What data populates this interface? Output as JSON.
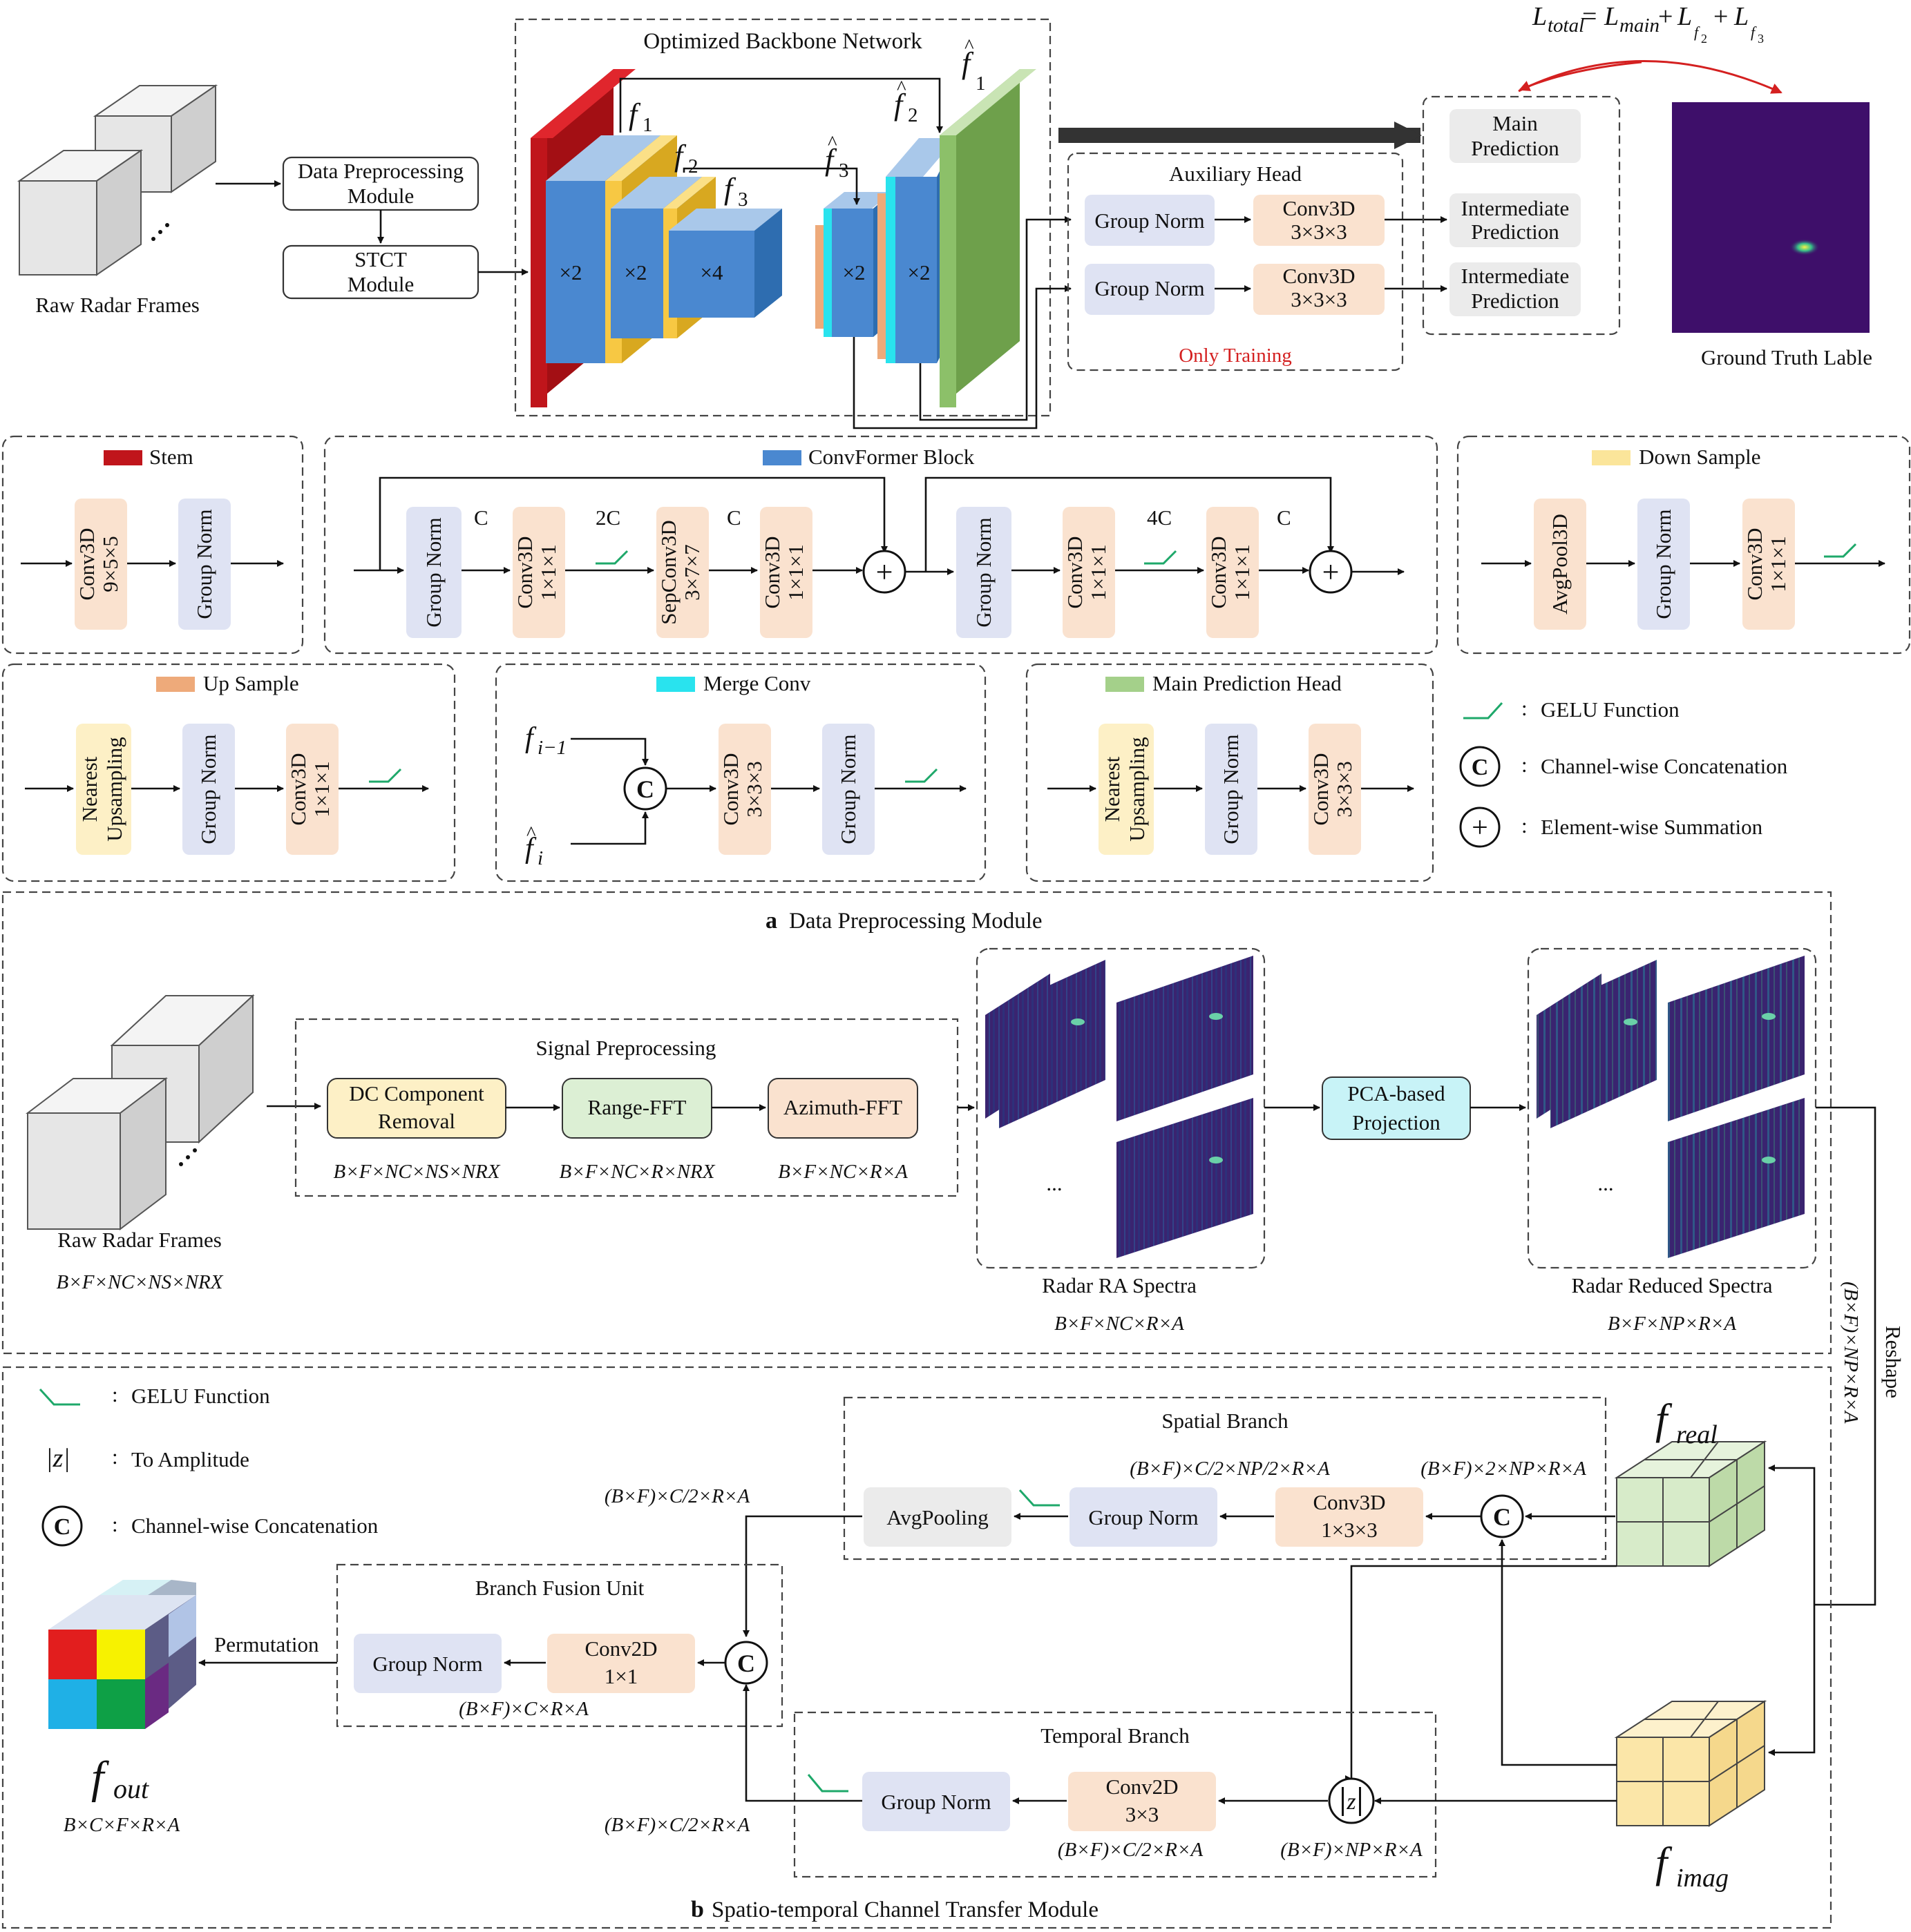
{
  "colors": {
    "stem": "#c0151b",
    "convformer": "#4a88d0",
    "down": "#f7c843",
    "up": "#eeaa7a",
    "merge": "#29e3ee",
    "main_head": "#8cc069",
    "norm_box": "#dfe3f3",
    "conv_box": "#fae2cf",
    "nearest_box": "#fdf0c6",
    "fft_green": "#dcefd4",
    "pca_box": "#c8f3f7",
    "gelu": "#1ea86a",
    "spectra": "#3a2470"
  },
  "top": {
    "raw_frames": "Raw Radar Frames",
    "data_prep": [
      "Data Preprocessing",
      "Module"
    ],
    "stct": [
      "STCT",
      "Module"
    ],
    "backbone_title": "Optimized Backbone Network",
    "f1": "f",
    "f1_sub": "1",
    "f2": "f",
    "f2_sub": "2",
    "f3": "f",
    "f3_sub": "3",
    "fh1": "f",
    "fh1_sub": "1",
    "fh2": "f",
    "fh2_sub": "2",
    "fh3": "f",
    "fh3_sub": "3",
    "hat": "^",
    "x2": "×2",
    "x4": "×4",
    "aux_title": "Auxiliary Head",
    "group_norm": "Group Norm",
    "conv3d": "Conv3D",
    "k333": "3×3×3",
    "only_training": "Only Training",
    "main_pred": [
      "Main",
      "Prediction"
    ],
    "inter_pred": [
      "Intermediate",
      "Prediction"
    ],
    "gt_label": "Ground Truth Lable",
    "loss": {
      "L": "L",
      "total": "total",
      "eq": "=",
      "main": "main",
      "plus": "+",
      "f2": "f",
      "f2s": "2",
      "f3": "f",
      "f3s": "3"
    }
  },
  "legend": {
    "stem": "Stem",
    "convformer": "ConvFormer Block",
    "down": "Down Sample",
    "up": "Up Sample",
    "merge": "Merge Conv",
    "main_head": "Main Prediction Head",
    "gelu": "GELU Function",
    "concat": "Channel-wise Concatenation",
    "sum": "Element-wise Summation",
    "colon": ":",
    "c": "C",
    "plus": "+"
  },
  "blocks": {
    "conv3d": "Conv3D",
    "k955": "9×5×5",
    "k111": "1×1×1",
    "k377": "3×7×7",
    "k333": "3×3×3",
    "group_norm": "Group Norm",
    "sepconv3d": "SepConv3D",
    "avgpool3d": "AvgPool3D",
    "nearest": "Nearest",
    "upsampling": "Upsampling",
    "ch_C": "C",
    "ch_2C": "2C",
    "ch_4C": "4C",
    "fi1": "f",
    "fi1_sub": "i−1",
    "fi": "f",
    "fi_sub": "i"
  },
  "panel_a": {
    "tag": "a",
    "title": "Data Preprocessing Module",
    "signal_title": "Signal Preprocessing",
    "dc": [
      "DC Component",
      "Removal"
    ],
    "range_fft": "Range-FFT",
    "azimuth_fft": "Azimuth-FFT",
    "dim_dc": "B×F×NC×NS×NRX",
    "dim_range": "B×F×NC×R×NRX",
    "dim_azimuth": "B×F×NC×R×A",
    "raw_frames": "Raw Radar Frames",
    "dim_raw": "B×F×NC×NS×NRX",
    "ra_spectra": "Radar RA Spectra",
    "dim_ra": "B×F×NC×R×A",
    "pca": [
      "PCA-based",
      "Projection"
    ],
    "reduced": "Radar Reduced Spectra",
    "dim_reduced": "B×F×NP×R×A",
    "ellipsis": "...",
    "reshape": "Reshape",
    "reshape_dim": "(B×F)×NP×R×A"
  },
  "panel_b": {
    "tag": "b",
    "title": "Spatio-temporal Channel Transfer Module",
    "legend_gelu": "GELU Function",
    "legend_amp": "To Amplitude",
    "legend_concat": "Channel-wise Concatenation",
    "legend_z": "|z|",
    "colon": ":",
    "spatial": "Spatial Branch",
    "avgpool": "AvgPooling",
    "group_norm": "Group Norm",
    "conv3d": "Conv3D",
    "k133": "1×3×3",
    "dim_sp_in": "(B×F)×2×NP×R×A",
    "dim_sp_mid": "(B×F)×C/2×NP/2×R×A",
    "dim_sp_out": "(B×F)×C/2×R×A",
    "fusion": "Branch Fusion Unit",
    "conv2d": "Conv2D",
    "k11": "1×1",
    "k33": "3×3",
    "dim_fusion": "(B×F)×C×R×A",
    "permutation": "Permutation",
    "f_out": "f",
    "f_out_sub": "out",
    "dim_out": "B×C×F×R×A",
    "temporal": "Temporal Branch",
    "dim_tp_mid": "(B×F)×C/2×R×A",
    "dim_tp_out": "(B×F)×C/2×R×A",
    "dim_amp": "(B×F)×NP×R×A",
    "f_real": "f",
    "f_real_sub": "real",
    "f_imag": "f",
    "f_imag_sub": "imag",
    "c": "C",
    "z": "z"
  }
}
